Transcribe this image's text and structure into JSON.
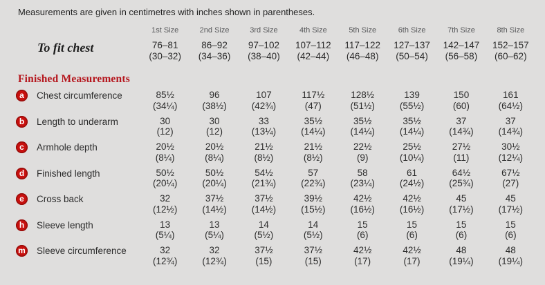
{
  "note": "Measurements are given in centimetres with inches shown in parentheses.",
  "table": {
    "size_headers": [
      "1st Size",
      "2nd Size",
      "3rd Size",
      "4th Size",
      "5th Size",
      "6th Size",
      "7th Size",
      "8th Size"
    ],
    "to_fit": {
      "label": "To fit chest",
      "cm": [
        "76–81",
        "86–92",
        "97–102",
        "107–112",
        "117–122",
        "127–137",
        "142–147",
        "152–157"
      ],
      "inches": [
        "(30–32)",
        "(34–36)",
        "(38–40)",
        "(42–44)",
        "(46–48)",
        "(50–54)",
        "(56–58)",
        "(60–62)"
      ]
    },
    "section_title": "Finished Measurements",
    "rows": [
      {
        "badge": "a",
        "label": "Chest circumference",
        "cm": [
          "85½",
          "96",
          "107",
          "117½",
          "128½",
          "139",
          "150",
          "161"
        ],
        "inches": [
          "(34¼)",
          "(38½)",
          "(42¾)",
          "(47)",
          "(51½)",
          "(55½)",
          "(60)",
          "(64½)"
        ]
      },
      {
        "badge": "b",
        "label": "Length to underarm",
        "cm": [
          "30",
          "30",
          "33",
          "35½",
          "35½",
          "35½",
          "37",
          "37"
        ],
        "inches": [
          "(12)",
          "(12)",
          "(13¼)",
          "(14¼)",
          "(14¼)",
          "(14¼)",
          "(14¾)",
          "(14¾)"
        ]
      },
      {
        "badge": "c",
        "label": "Armhole depth",
        "cm": [
          "20½",
          "20½",
          "21½",
          "21½",
          "22½",
          "25½",
          "27½",
          "30½"
        ],
        "inches": [
          "(8¼)",
          "(8¼)",
          "(8½)",
          "(8½)",
          "(9)",
          "(10¼)",
          "(11)",
          "(12¼)"
        ]
      },
      {
        "badge": "d",
        "label": "Finished length",
        "cm": [
          "50½",
          "50½",
          "54½",
          "57",
          "58",
          "61",
          "64½",
          "67½"
        ],
        "inches": [
          "(20¼)",
          "(20¼)",
          "(21¾)",
          "(22¾)",
          "(23¼)",
          "(24½)",
          "(25¾)",
          "(27)"
        ]
      },
      {
        "badge": "e",
        "label": "Cross back",
        "cm": [
          "32",
          "37½",
          "37½",
          "39½",
          "42½",
          "42½",
          "45",
          "45"
        ],
        "inches": [
          "(12½)",
          "(14½)",
          "(14½)",
          "(15½)",
          "(16½)",
          "(16½)",
          "(17½)",
          "(17½)"
        ]
      },
      {
        "badge": "h",
        "label": "Sleeve length",
        "cm": [
          "13",
          "13",
          "14",
          "14",
          "15",
          "15",
          "15",
          "15"
        ],
        "inches": [
          "(5¼)",
          "(5¼)",
          "(5½)",
          "(5½)",
          "(6)",
          "(6)",
          "(6)",
          "(6)"
        ]
      },
      {
        "badge": "m",
        "label": "Sleeve circumference",
        "cm": [
          "32",
          "32",
          "37½",
          "37½",
          "42½",
          "42½",
          "48",
          "48"
        ],
        "inches": [
          "(12¾)",
          "(12¾)",
          "(15)",
          "(15)",
          "(17)",
          "(17)",
          "(19¼)",
          "(19¼)"
        ]
      }
    ]
  },
  "colors": {
    "background": "#dfdedd",
    "text": "#2b2b2b",
    "size_header_gray": "#57585a",
    "badge_red": "#c8100e",
    "badge_ring_red": "#960d0a",
    "heading_red": "#b5161d"
  }
}
